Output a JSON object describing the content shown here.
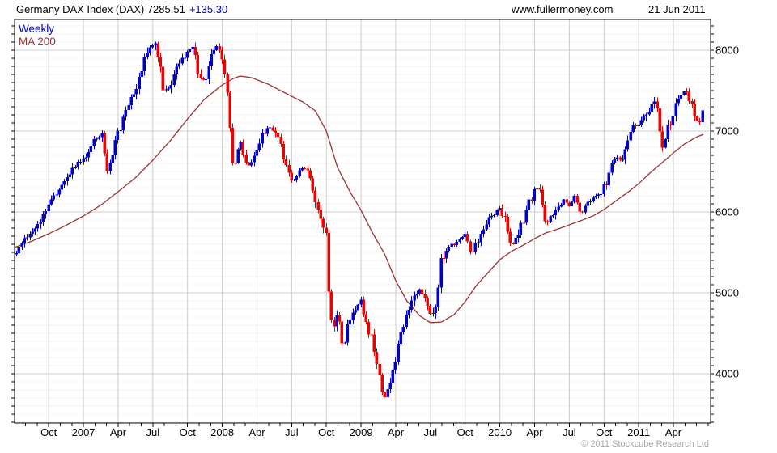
{
  "header": {
    "title": "Germany DAX Index (DAX) 7285.51",
    "change": "+135.30",
    "website": "www.fullermoney.com",
    "date": "21 Jun 2011"
  },
  "legend": {
    "series1_label": "Weekly",
    "series2_label": "MA 200"
  },
  "footer": {
    "copyright": "© 2011 Stockcube Research Ltd"
  },
  "colors": {
    "up_candle": "#0000cc",
    "down_candle": "#ee0000",
    "ma_line": "#993333",
    "legend_weekly": "#0000cc",
    "legend_ma": "#993333",
    "grid_major": "#cccccc",
    "grid_minor": "#f4f4f4",
    "axis": "#000000",
    "change_text": "#0000cc",
    "copyright_text": "#a6a6a6"
  },
  "chart_data": {
    "type": "candlestick",
    "title": "Germany DAX Index (DAX)",
    "frequency": "Weekly",
    "overlay": "MA 200",
    "last_price": 7285.51,
    "change": 135.3,
    "as_of": "21 Jun 2011",
    "y_axis": {
      "side": "right",
      "ticks": [
        8000,
        7000,
        6000,
        5000,
        4000
      ],
      "minor_step": 100,
      "range": [
        3390,
        8380
      ]
    },
    "x_axis": {
      "range": [
        2006.504,
        2011.518
      ],
      "labels": [
        {
          "t": 2006.75,
          "text": "Oct"
        },
        {
          "t": 2007.0,
          "text": "2007"
        },
        {
          "t": 2007.25,
          "text": "Apr"
        },
        {
          "t": 2007.5,
          "text": "Jul"
        },
        {
          "t": 2007.75,
          "text": "Oct"
        },
        {
          "t": 2008.0,
          "text": "2008"
        },
        {
          "t": 2008.25,
          "text": "Apr"
        },
        {
          "t": 2008.5,
          "text": "Jul"
        },
        {
          "t": 2008.75,
          "text": "Oct"
        },
        {
          "t": 2009.0,
          "text": "2009"
        },
        {
          "t": 2009.25,
          "text": "Apr"
        },
        {
          "t": 2009.5,
          "text": "Jul"
        },
        {
          "t": 2009.75,
          "text": "Oct"
        },
        {
          "t": 2010.0,
          "text": "2010"
        },
        {
          "t": 2010.25,
          "text": "Apr"
        },
        {
          "t": 2010.5,
          "text": "Jul"
        },
        {
          "t": 2010.75,
          "text": "Oct"
        },
        {
          "t": 2011.0,
          "text": "2011"
        },
        {
          "t": 2011.25,
          "text": "Apr"
        }
      ]
    },
    "price_anchors": [
      [
        2006.504,
        5470
      ],
      [
        2006.54,
        5560
      ],
      [
        2006.58,
        5660
      ],
      [
        2006.63,
        5760
      ],
      [
        2006.67,
        5870
      ],
      [
        2006.71,
        5960
      ],
      [
        2006.75,
        6110
      ],
      [
        2006.79,
        6180
      ],
      [
        2006.83,
        6290
      ],
      [
        2006.88,
        6400
      ],
      [
        2006.92,
        6560
      ],
      [
        2006.96,
        6600
      ],
      [
        2007.0,
        6660
      ],
      [
        2007.04,
        6760
      ],
      [
        2007.08,
        6900
      ],
      [
        2007.13,
        6960
      ],
      [
        2007.15,
        6750
      ],
      [
        2007.17,
        6530
      ],
      [
        2007.21,
        6760
      ],
      [
        2007.25,
        7010
      ],
      [
        2007.29,
        7150
      ],
      [
        2007.33,
        7360
      ],
      [
        2007.38,
        7510
      ],
      [
        2007.42,
        7760
      ],
      [
        2007.46,
        8010
      ],
      [
        2007.5,
        8070
      ],
      [
        2007.52,
        8110
      ],
      [
        2007.54,
        7910
      ],
      [
        2007.58,
        7460
      ],
      [
        2007.63,
        7560
      ],
      [
        2007.67,
        7760
      ],
      [
        2007.71,
        7900
      ],
      [
        2007.75,
        7960
      ],
      [
        2007.79,
        8060
      ],
      [
        2007.83,
        7710
      ],
      [
        2007.87,
        7610
      ],
      [
        2007.92,
        7910
      ],
      [
        2007.96,
        8060
      ],
      [
        2008.0,
        7860
      ],
      [
        2008.04,
        7360
      ],
      [
        2008.08,
        6510
      ],
      [
        2008.13,
        6890
      ],
      [
        2008.17,
        6560
      ],
      [
        2008.21,
        6610
      ],
      [
        2008.25,
        6810
      ],
      [
        2008.29,
        6960
      ],
      [
        2008.33,
        7060
      ],
      [
        2008.38,
        7010
      ],
      [
        2008.42,
        6810
      ],
      [
        2008.46,
        6560
      ],
      [
        2008.5,
        6360
      ],
      [
        2008.54,
        6460
      ],
      [
        2008.58,
        6560
      ],
      [
        2008.63,
        6460
      ],
      [
        2008.67,
        6110
      ],
      [
        2008.71,
        5910
      ],
      [
        2008.75,
        5710
      ],
      [
        2008.77,
        4810
      ],
      [
        2008.81,
        4560
      ],
      [
        2008.83,
        4860
      ],
      [
        2008.87,
        4260
      ],
      [
        2008.9,
        4610
      ],
      [
        2008.92,
        4710
      ],
      [
        2008.96,
        4810
      ],
      [
        2009.0,
        4910
      ],
      [
        2009.04,
        4560
      ],
      [
        2009.08,
        4410
      ],
      [
        2009.12,
        4010
      ],
      [
        2009.17,
        3710
      ],
      [
        2009.19,
        3810
      ],
      [
        2009.21,
        3960
      ],
      [
        2009.25,
        4210
      ],
      [
        2009.29,
        4510
      ],
      [
        2009.33,
        4760
      ],
      [
        2009.38,
        4910
      ],
      [
        2009.42,
        5060
      ],
      [
        2009.46,
        4960
      ],
      [
        2009.5,
        4710
      ],
      [
        2009.54,
        4910
      ],
      [
        2009.58,
        5460
      ],
      [
        2009.63,
        5560
      ],
      [
        2009.67,
        5610
      ],
      [
        2009.71,
        5660
      ],
      [
        2009.75,
        5710
      ],
      [
        2009.79,
        5460
      ],
      [
        2009.83,
        5630
      ],
      [
        2009.88,
        5760
      ],
      [
        2009.92,
        5910
      ],
      [
        2010.0,
        6060
      ],
      [
        2010.04,
        5860
      ],
      [
        2010.08,
        5560
      ],
      [
        2010.13,
        5710
      ],
      [
        2010.17,
        5910
      ],
      [
        2010.21,
        6110
      ],
      [
        2010.25,
        6260
      ],
      [
        2010.29,
        6310
      ],
      [
        2010.33,
        5860
      ],
      [
        2010.38,
        5960
      ],
      [
        2010.42,
        6060
      ],
      [
        2010.46,
        6160
      ],
      [
        2010.5,
        6060
      ],
      [
        2010.54,
        6210
      ],
      [
        2010.58,
        5960
      ],
      [
        2010.63,
        6110
      ],
      [
        2010.67,
        6160
      ],
      [
        2010.71,
        6210
      ],
      [
        2010.75,
        6310
      ],
      [
        2010.79,
        6510
      ],
      [
        2010.83,
        6710
      ],
      [
        2010.87,
        6610
      ],
      [
        2010.92,
        6910
      ],
      [
        2010.96,
        7060
      ],
      [
        2011.0,
        7080
      ],
      [
        2011.04,
        7160
      ],
      [
        2011.08,
        7310
      ],
      [
        2011.12,
        7430
      ],
      [
        2011.15,
        7060
      ],
      [
        2011.17,
        6760
      ],
      [
        2011.21,
        7060
      ],
      [
        2011.25,
        7210
      ],
      [
        2011.29,
        7410
      ],
      [
        2011.33,
        7510
      ],
      [
        2011.37,
        7360
      ],
      [
        2011.4,
        7160
      ],
      [
        2011.44,
        7110
      ],
      [
        2011.462,
        7285.51
      ]
    ],
    "ma200_anchors": [
      [
        2006.504,
        5560
      ],
      [
        2006.63,
        5640
      ],
      [
        2006.75,
        5730
      ],
      [
        2006.87,
        5830
      ],
      [
        2007.0,
        5950
      ],
      [
        2007.13,
        6090
      ],
      [
        2007.25,
        6250
      ],
      [
        2007.38,
        6430
      ],
      [
        2007.5,
        6640
      ],
      [
        2007.63,
        6890
      ],
      [
        2007.75,
        7150
      ],
      [
        2007.87,
        7390
      ],
      [
        2008.0,
        7570
      ],
      [
        2008.08,
        7650
      ],
      [
        2008.13,
        7680
      ],
      [
        2008.21,
        7660
      ],
      [
        2008.33,
        7580
      ],
      [
        2008.42,
        7500
      ],
      [
        2008.5,
        7430
      ],
      [
        2008.58,
        7360
      ],
      [
        2008.67,
        7250
      ],
      [
        2008.75,
        7000
      ],
      [
        2008.83,
        6550
      ],
      [
        2008.92,
        6250
      ],
      [
        2009.0,
        6020
      ],
      [
        2009.08,
        5750
      ],
      [
        2009.17,
        5480
      ],
      [
        2009.25,
        5150
      ],
      [
        2009.33,
        4900
      ],
      [
        2009.42,
        4720
      ],
      [
        2009.5,
        4630
      ],
      [
        2009.58,
        4640
      ],
      [
        2009.67,
        4730
      ],
      [
        2009.75,
        4890
      ],
      [
        2009.83,
        5090
      ],
      [
        2009.92,
        5260
      ],
      [
        2010.0,
        5410
      ],
      [
        2010.08,
        5510
      ],
      [
        2010.17,
        5590
      ],
      [
        2010.25,
        5670
      ],
      [
        2010.33,
        5740
      ],
      [
        2010.42,
        5790
      ],
      [
        2010.5,
        5840
      ],
      [
        2010.58,
        5890
      ],
      [
        2010.67,
        5950
      ],
      [
        2010.75,
        6030
      ],
      [
        2010.83,
        6130
      ],
      [
        2010.92,
        6240
      ],
      [
        2011.0,
        6350
      ],
      [
        2011.08,
        6480
      ],
      [
        2011.17,
        6610
      ],
      [
        2011.25,
        6730
      ],
      [
        2011.33,
        6840
      ],
      [
        2011.42,
        6930
      ],
      [
        2011.47,
        6960
      ]
    ]
  }
}
